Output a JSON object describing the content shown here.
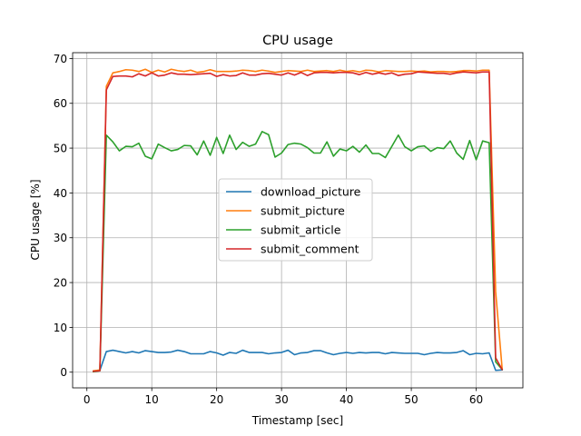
{
  "chart_data": {
    "type": "line",
    "title": "CPU usage",
    "xlabel": "Timestamp [sec]",
    "ylabel": "CPU usage [%]",
    "xlim": [
      -2.2,
      67.2
    ],
    "ylim": [
      -3.5,
      71.3
    ],
    "xticks": [
      0,
      10,
      20,
      30,
      40,
      50,
      60
    ],
    "yticks": [
      0,
      10,
      20,
      30,
      40,
      50,
      60,
      70
    ],
    "grid": true,
    "legend_position": "center-right",
    "x": [
      1,
      2,
      3,
      4,
      5,
      6,
      7,
      8,
      9,
      10,
      11,
      12,
      13,
      14,
      15,
      16,
      17,
      18,
      19,
      20,
      21,
      22,
      23,
      24,
      25,
      26,
      27,
      28,
      29,
      30,
      31,
      32,
      33,
      34,
      35,
      36,
      37,
      38,
      39,
      40,
      41,
      42,
      43,
      44,
      45,
      46,
      47,
      48,
      49,
      50,
      51,
      52,
      53,
      54,
      55,
      56,
      57,
      58,
      59,
      60,
      61,
      62,
      63,
      64
    ],
    "series": [
      {
        "name": "download_picture",
        "color": "#1f77b4",
        "values": [
          0.3,
          0.4,
          4.6,
          4.9,
          4.6,
          4.3,
          4.6,
          4.3,
          4.8,
          4.6,
          4.4,
          4.4,
          4.5,
          4.9,
          4.6,
          4.1,
          4.1,
          4.1,
          4.6,
          4.3,
          3.8,
          4.4,
          4.2,
          4.9,
          4.4,
          4.4,
          4.4,
          4.1,
          4.3,
          4.4,
          4.9,
          3.9,
          4.3,
          4.4,
          4.8,
          4.8,
          4.3,
          3.9,
          4.2,
          4.4,
          4.2,
          4.4,
          4.3,
          4.4,
          4.4,
          4.1,
          4.4,
          4.3,
          4.2,
          4.2,
          4.2,
          3.9,
          4.2,
          4.4,
          4.3,
          4.3,
          4.4,
          4.8,
          3.9,
          4.2,
          4.1,
          4.3,
          0.4,
          0.5
        ]
      },
      {
        "name": "submit_picture",
        "color": "#ff7f0e",
        "values": [
          0.3,
          0.5,
          63.8,
          66.8,
          67.1,
          67.5,
          67.4,
          67.1,
          67.6,
          66.9,
          67.4,
          67.0,
          67.6,
          67.3,
          67.1,
          67.4,
          66.9,
          67.1,
          67.5,
          67.1,
          67.1,
          67.1,
          67.2,
          67.4,
          67.3,
          67.1,
          67.4,
          67.2,
          66.9,
          67.1,
          67.3,
          67.2,
          67.1,
          67.4,
          67.1,
          67.2,
          67.3,
          67.1,
          67.4,
          67.1,
          67.3,
          67.0,
          67.4,
          67.3,
          67.0,
          67.3,
          67.2,
          67.1,
          67.1,
          67.2,
          67.1,
          67.2,
          67.0,
          67.1,
          67.1,
          67.0,
          67.1,
          67.3,
          67.3,
          67.2,
          67.4,
          67.4,
          18.0,
          0.8
        ]
      },
      {
        "name": "submit_article",
        "color": "#2ca02c",
        "values": [
          0.1,
          0.3,
          52.9,
          51.4,
          49.4,
          50.4,
          50.3,
          51.1,
          48.2,
          47.6,
          50.9,
          50.1,
          49.4,
          49.7,
          50.6,
          50.5,
          48.5,
          51.6,
          48.4,
          52.4,
          48.8,
          52.9,
          49.7,
          51.3,
          50.4,
          50.9,
          53.7,
          53.0,
          48.0,
          48.9,
          50.8,
          51.1,
          50.9,
          50.1,
          48.9,
          48.9,
          51.4,
          48.2,
          49.8,
          49.4,
          50.4,
          49.1,
          50.7,
          48.8,
          48.8,
          47.9,
          50.4,
          52.9,
          50.3,
          49.4,
          50.3,
          50.5,
          49.3,
          50.1,
          49.9,
          51.6,
          48.9,
          47.5,
          51.7,
          47.4,
          51.6,
          51.2,
          2.3,
          0.6
        ]
      },
      {
        "name": "submit_comment",
        "color": "#d62728",
        "values": [
          0.2,
          0.3,
          63.0,
          66.0,
          66.1,
          66.1,
          65.9,
          66.6,
          66.1,
          66.8,
          66.1,
          66.3,
          66.8,
          66.5,
          66.5,
          66.4,
          66.5,
          66.6,
          66.7,
          66.0,
          66.4,
          66.1,
          66.2,
          66.8,
          66.3,
          66.3,
          66.6,
          66.7,
          66.5,
          66.3,
          66.8,
          66.3,
          66.9,
          66.2,
          66.8,
          66.9,
          66.9,
          66.8,
          66.9,
          66.9,
          66.8,
          66.4,
          66.9,
          66.5,
          66.8,
          66.5,
          66.8,
          66.2,
          66.5,
          66.6,
          67.0,
          66.9,
          66.8,
          66.7,
          66.7,
          66.5,
          66.8,
          67.0,
          66.9,
          66.8,
          67.0,
          67.0,
          3.2,
          0.6
        ]
      }
    ]
  }
}
